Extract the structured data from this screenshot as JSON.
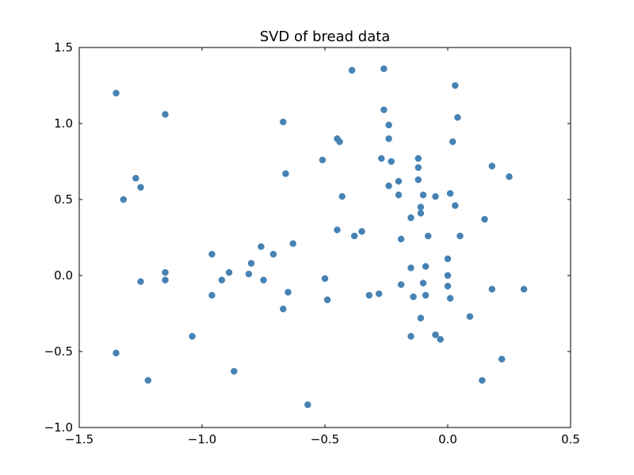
{
  "chart_data": {
    "type": "scatter",
    "title": "SVD of bread data",
    "xlabel": "",
    "ylabel": "",
    "xlim": [
      -1.5,
      0.5
    ],
    "ylim": [
      -1.0,
      1.5
    ],
    "xticks": [
      -1.5,
      -1.0,
      -0.5,
      0.0,
      0.5
    ],
    "yticks": [
      -1.0,
      -0.5,
      0.0,
      0.5,
      1.0,
      1.5
    ],
    "xtick_labels": [
      "−1.5",
      "−1.0",
      "−0.5",
      "0.0",
      "0.5"
    ],
    "ytick_labels": [
      "−1.0",
      "−0.5",
      "0.0",
      "0.5",
      "1.0",
      "1.5"
    ],
    "grid": false,
    "marker_color": "#4682b4",
    "points": [
      {
        "x": -1.35,
        "y": 1.2
      },
      {
        "x": -1.15,
        "y": 1.06
      },
      {
        "x": -1.27,
        "y": 0.64
      },
      {
        "x": -1.25,
        "y": 0.58
      },
      {
        "x": -1.32,
        "y": 0.5
      },
      {
        "x": -1.25,
        "y": -0.04
      },
      {
        "x": -1.15,
        "y": 0.02
      },
      {
        "x": -1.15,
        "y": -0.03
      },
      {
        "x": -1.35,
        "y": -0.51
      },
      {
        "x": -1.22,
        "y": -0.69
      },
      {
        "x": -1.04,
        "y": -0.4
      },
      {
        "x": -0.96,
        "y": 0.14
      },
      {
        "x": -0.96,
        "y": -0.13
      },
      {
        "x": -0.92,
        "y": -0.03
      },
      {
        "x": -0.89,
        "y": 0.02
      },
      {
        "x": -0.87,
        "y": -0.63
      },
      {
        "x": -0.81,
        "y": 0.01
      },
      {
        "x": -0.8,
        "y": 0.08
      },
      {
        "x": -0.76,
        "y": 0.19
      },
      {
        "x": -0.75,
        "y": -0.03
      },
      {
        "x": -0.71,
        "y": 0.14
      },
      {
        "x": -0.67,
        "y": 1.01
      },
      {
        "x": -0.66,
        "y": 0.67
      },
      {
        "x": -0.63,
        "y": 0.21
      },
      {
        "x": -0.65,
        "y": -0.11
      },
      {
        "x": -0.67,
        "y": -0.22
      },
      {
        "x": -0.57,
        "y": -0.85
      },
      {
        "x": -0.51,
        "y": 0.76
      },
      {
        "x": -0.5,
        "y": -0.02
      },
      {
        "x": -0.49,
        "y": -0.16
      },
      {
        "x": -0.45,
        "y": 0.9
      },
      {
        "x": -0.44,
        "y": 0.88
      },
      {
        "x": -0.43,
        "y": 0.52
      },
      {
        "x": -0.45,
        "y": 0.3
      },
      {
        "x": -0.39,
        "y": 1.35
      },
      {
        "x": -0.38,
        "y": 0.26
      },
      {
        "x": -0.35,
        "y": 0.29
      },
      {
        "x": -0.32,
        "y": -0.13
      },
      {
        "x": -0.28,
        "y": -0.12
      },
      {
        "x": -0.26,
        "y": 1.36
      },
      {
        "x": -0.26,
        "y": 1.09
      },
      {
        "x": -0.24,
        "y": 0.99
      },
      {
        "x": -0.24,
        "y": 0.9
      },
      {
        "x": -0.27,
        "y": 0.77
      },
      {
        "x": -0.23,
        "y": 0.75
      },
      {
        "x": -0.24,
        "y": 0.59
      },
      {
        "x": -0.2,
        "y": 0.62
      },
      {
        "x": -0.2,
        "y": 0.53
      },
      {
        "x": -0.19,
        "y": 0.24
      },
      {
        "x": -0.19,
        "y": -0.06
      },
      {
        "x": -0.15,
        "y": 0.05
      },
      {
        "x": -0.15,
        "y": 0.38
      },
      {
        "x": -0.14,
        "y": -0.14
      },
      {
        "x": -0.15,
        "y": -0.4
      },
      {
        "x": -0.12,
        "y": 0.77
      },
      {
        "x": -0.12,
        "y": 0.71
      },
      {
        "x": -0.12,
        "y": 0.63
      },
      {
        "x": -0.1,
        "y": 0.53
      },
      {
        "x": -0.11,
        "y": 0.45
      },
      {
        "x": -0.11,
        "y": 0.41
      },
      {
        "x": -0.08,
        "y": 0.26
      },
      {
        "x": -0.09,
        "y": 0.06
      },
      {
        "x": -0.1,
        "y": -0.05
      },
      {
        "x": -0.09,
        "y": -0.13
      },
      {
        "x": -0.11,
        "y": -0.28
      },
      {
        "x": -0.05,
        "y": 0.52
      },
      {
        "x": -0.05,
        "y": -0.39
      },
      {
        "x": -0.03,
        "y": -0.42
      },
      {
        "x": 0.0,
        "y": 0.11
      },
      {
        "x": 0.0,
        "y": 0.0
      },
      {
        "x": 0.0,
        "y": -0.07
      },
      {
        "x": 0.01,
        "y": -0.15
      },
      {
        "x": 0.01,
        "y": 0.54
      },
      {
        "x": 0.02,
        "y": 0.88
      },
      {
        "x": 0.03,
        "y": 1.25
      },
      {
        "x": 0.03,
        "y": 0.46
      },
      {
        "x": 0.04,
        "y": 1.04
      },
      {
        "x": 0.05,
        "y": 0.26
      },
      {
        "x": 0.09,
        "y": -0.27
      },
      {
        "x": 0.14,
        "y": -0.69
      },
      {
        "x": 0.15,
        "y": 0.37
      },
      {
        "x": 0.18,
        "y": 0.72
      },
      {
        "x": 0.18,
        "y": -0.09
      },
      {
        "x": 0.22,
        "y": -0.55
      },
      {
        "x": 0.25,
        "y": 0.65
      },
      {
        "x": 0.31,
        "y": -0.09
      }
    ]
  }
}
